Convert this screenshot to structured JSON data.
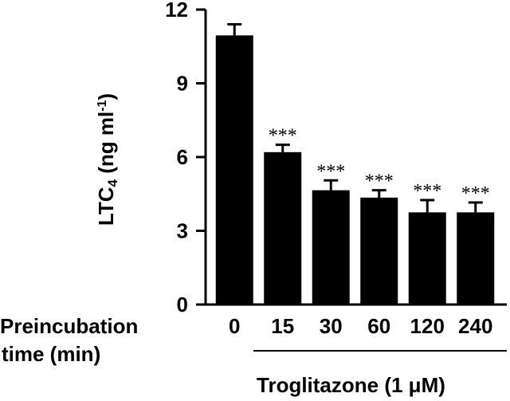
{
  "chart_data": {
    "type": "bar",
    "ylabel": "LTC",
    "ylabel_sub": "4",
    "ylabel_unit": " (ng ml",
    "ylabel_sup": "-1",
    "ylabel_close": ")",
    "xlabel_line1": "Preincubation",
    "xlabel_line2": "time (min)",
    "categories": [
      "0",
      "15",
      "30",
      "60",
      "120",
      "240"
    ],
    "values": [
      10.95,
      6.2,
      4.65,
      4.35,
      3.75,
      3.75
    ],
    "errors": [
      0.45,
      0.3,
      0.4,
      0.3,
      0.5,
      0.4
    ],
    "significance": [
      "",
      "***",
      "***",
      "***",
      "***",
      "***"
    ],
    "ylim": [
      0,
      12
    ],
    "yticks": [
      "0",
      "3",
      "6",
      "9",
      "12"
    ],
    "treatment_label": "Troglitazone (1 μM)",
    "bar_color": "#000000"
  }
}
